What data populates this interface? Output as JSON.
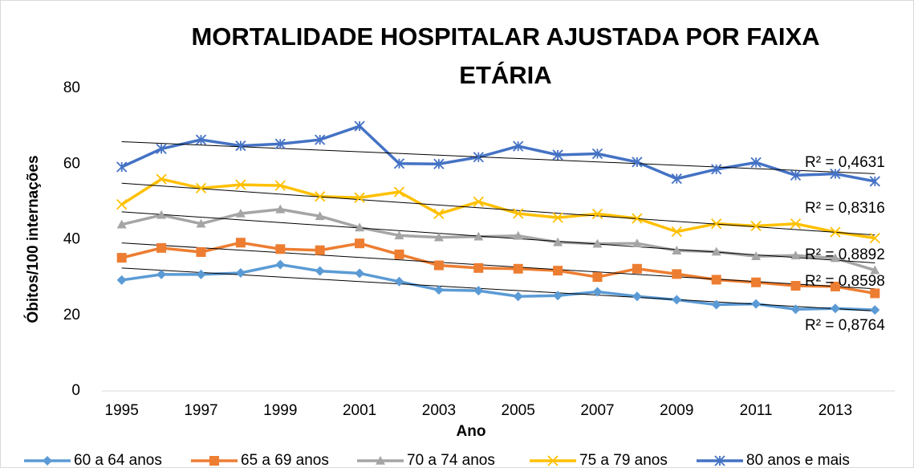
{
  "chart_data": {
    "type": "line",
    "title": [
      "MORTALIDADE HOSPITALAR AJUSTADA POR FAIXA",
      "ETÁRIA"
    ],
    "x_label": "Ano",
    "y_label": "Óbitos/100 internações",
    "x": [
      1995,
      1996,
      1997,
      1998,
      1999,
      2000,
      2001,
      2002,
      2003,
      2004,
      2005,
      2006,
      2007,
      2008,
      2009,
      2010,
      2011,
      2012,
      2013,
      2014
    ],
    "xlim": [
      1994.5,
      2014.5
    ],
    "xticks": [
      1995,
      1997,
      1999,
      2001,
      2003,
      2005,
      2007,
      2009,
      2011,
      2013
    ],
    "ylim": [
      0,
      80
    ],
    "yticks": [
      0,
      20,
      40,
      60,
      80
    ],
    "grid": false,
    "legend": "bottom",
    "series": [
      {
        "name": "60 a 64 anos",
        "color": "#5b9bd5",
        "marker": "diamond",
        "trendline_label": "R² = 0,8764",
        "values": [
          29.3,
          30.8,
          30.8,
          31.2,
          33.4,
          31.7,
          31.1,
          28.9,
          26.7,
          26.5,
          25.0,
          25.2,
          26.2,
          25.0,
          24.1,
          22.8,
          23.0,
          21.6,
          21.8,
          21.4
        ]
      },
      {
        "name": "65 a 69 anos",
        "color": "#ed7d31",
        "marker": "square",
        "trendline_label": "R² = 0,8598",
        "values": [
          35.2,
          37.8,
          36.7,
          39.2,
          37.5,
          37.2,
          39.0,
          36.1,
          33.2,
          32.5,
          32.3,
          31.8,
          30.1,
          32.3,
          30.9,
          29.4,
          28.7,
          27.8,
          27.6,
          25.8
        ]
      },
      {
        "name": "70 a 74 anos",
        "color": "#a5a5a5",
        "marker": "triangle",
        "trendline_label": "R² = 0,8892",
        "values": [
          44.0,
          46.5,
          44.2,
          46.9,
          48.0,
          46.2,
          43.2,
          41.1,
          40.6,
          40.8,
          41.0,
          39.3,
          38.9,
          39.0,
          37.1,
          36.8,
          35.6,
          35.8,
          35.1,
          31.9
        ]
      },
      {
        "name": "75 a 79 anos",
        "color": "#ffc000",
        "marker": "x",
        "trendline_label": "R² = 0,8316",
        "values": [
          49.3,
          56.0,
          53.6,
          54.5,
          54.3,
          51.4,
          51.1,
          52.6,
          46.8,
          50.0,
          46.9,
          45.8,
          46.8,
          45.6,
          42.1,
          44.2,
          43.6,
          44.2,
          42.0,
          40.4
        ]
      },
      {
        "name": "80 anos e mais",
        "color": "#4472c4",
        "marker": "star",
        "trendline_label": "R² = 0,4631",
        "values": [
          59.2,
          64.0,
          66.4,
          64.8,
          65.3,
          66.4,
          70.0,
          60.1,
          60.0,
          61.8,
          64.7,
          62.4,
          62.7,
          60.5,
          56.1,
          58.6,
          60.4,
          57.0,
          57.4,
          55.4
        ]
      }
    ]
  }
}
